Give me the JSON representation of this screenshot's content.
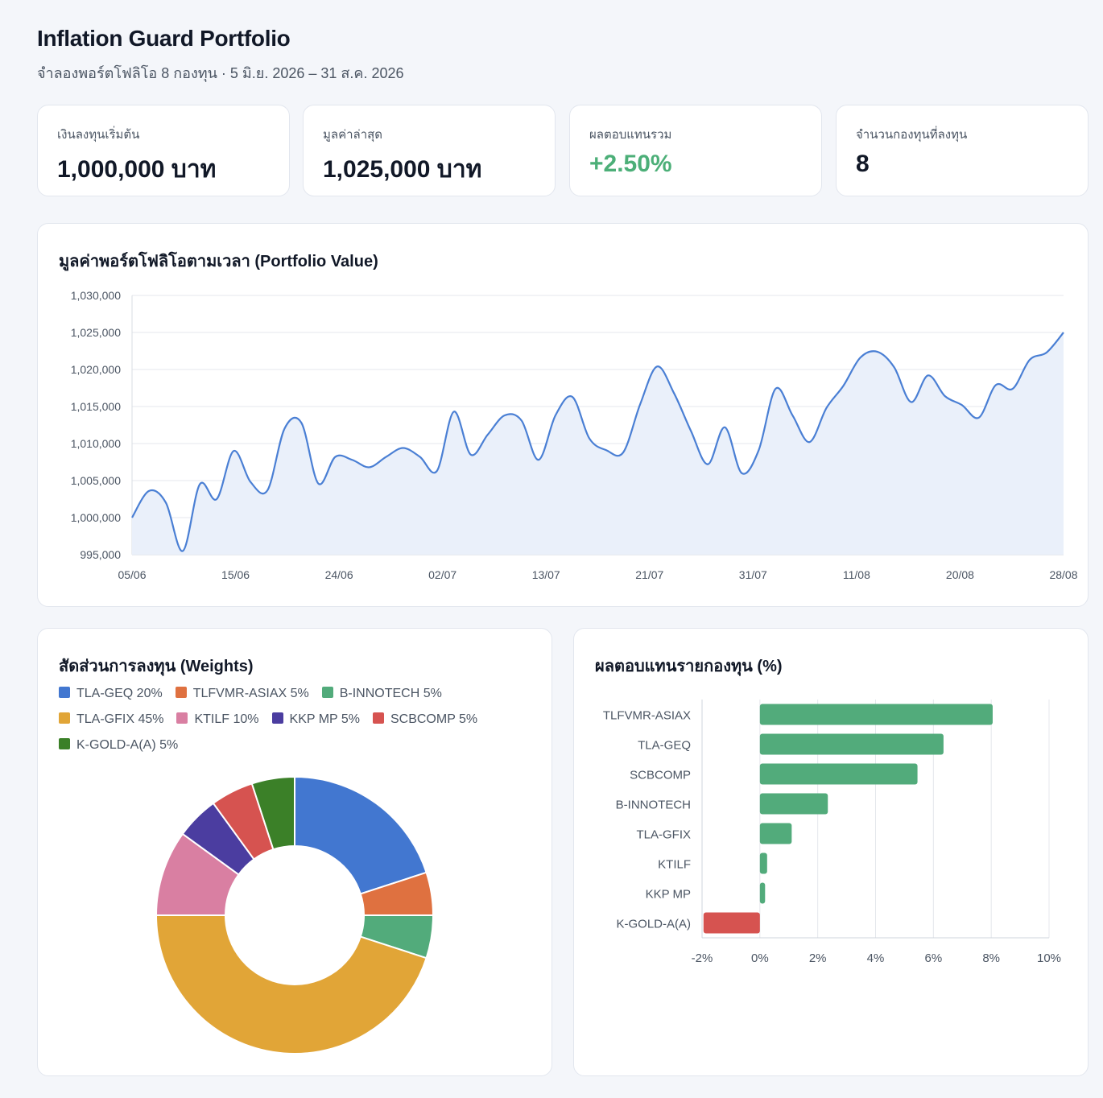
{
  "header": {
    "title": "Inflation Guard Portfolio",
    "subtitle": "จำลองพอร์ตโฟลิโอ 8 กองทุน  ·  5 มิ.ย. 2026 – 31 ส.ค. 2026"
  },
  "kpis": [
    {
      "label": "เงินลงทุนเริ่มต้น",
      "value": "1,000,000 บาท"
    },
    {
      "label": "มูลค่าล่าสุด",
      "value": "1,025,000 บาท"
    },
    {
      "label": "ผลตอบแทนรวม",
      "value": "+2.50%"
    },
    {
      "label": "จำนวนกองทุนที่ลงทุน",
      "value": "8"
    }
  ],
  "colors": {
    "line": "#4a7fd4",
    "area": "#eaf0fa",
    "positive": "#52ab7b",
    "negative": "#d65350",
    "accent_text": "#4caf78"
  },
  "chart_data": [
    {
      "type": "area",
      "title": "มูลค่าพอร์ตโฟลิโอตามเวลา (Portfolio Value)",
      "ylim": [
        995000,
        1030000
      ],
      "yticks": [
        995000,
        1000000,
        1005000,
        1010000,
        1015000,
        1020000,
        1025000,
        1030000
      ],
      "ytick_labels": [
        "995,000",
        "1,000,000",
        "1,005,000",
        "1,010,000",
        "1,015,000",
        "1,020,000",
        "1,025,000",
        "1,030,000"
      ],
      "xtick_labels": [
        "05/06",
        "15/06",
        "24/06",
        "02/07",
        "13/07",
        "21/07",
        "31/07",
        "11/08",
        "20/08",
        "28/08"
      ],
      "grid": true,
      "values": [
        1000000,
        1003600,
        1002000,
        995500,
        1004500,
        1002500,
        1009000,
        1004800,
        1003700,
        1012000,
        1012800,
        1004600,
        1008200,
        1007800,
        1006800,
        1008200,
        1009400,
        1008200,
        1006300,
        1014300,
        1008500,
        1011200,
        1013800,
        1013100,
        1007800,
        1013800,
        1016300,
        1010700,
        1009100,
        1008800,
        1015300,
        1020400,
        1016800,
        1011700,
        1007200,
        1012200,
        1006000,
        1009100,
        1017400,
        1013800,
        1010200,
        1014800,
        1017800,
        1021600,
        1022400,
        1020300,
        1015600,
        1019200,
        1016400,
        1015200,
        1013500,
        1017900,
        1017400,
        1021300,
        1022300,
        1025000
      ]
    },
    {
      "type": "pie",
      "title": "สัดส่วนการลงทุน (Weights)",
      "legend": "top",
      "slices": [
        {
          "name": "TLA-GEQ",
          "value": 20,
          "color": "#4277d0",
          "label": "TLA-GEQ 20%"
        },
        {
          "name": "TLFVMR-ASIAX",
          "value": 5,
          "color": "#df7140",
          "label": "TLFVMR-ASIAX 5%"
        },
        {
          "name": "B-INNOTECH",
          "value": 5,
          "color": "#52ab7b",
          "label": "B-INNOTECH 5%"
        },
        {
          "name": "TLA-GFIX",
          "value": 45,
          "color": "#e1a537",
          "label": "TLA-GFIX 45%"
        },
        {
          "name": "KTILF",
          "value": 10,
          "color": "#d97fa2",
          "label": "KTILF 10%"
        },
        {
          "name": "KKP MP",
          "value": 5,
          "color": "#4b3da0",
          "label": "KKP MP 5%"
        },
        {
          "name": "SCBCOMP",
          "value": 5,
          "color": "#d65350",
          "label": "SCBCOMP 5%"
        },
        {
          "name": "K-GOLD-A(A)",
          "value": 5,
          "color": "#3b8028",
          "label": "K-GOLD-A(A) 5%"
        }
      ]
    },
    {
      "type": "bar",
      "orientation": "horizontal",
      "title": "ผลตอบแทนรายกองทุน (%)",
      "xlim": [
        -2,
        10
      ],
      "xticks": [
        -2,
        0,
        2,
        4,
        6,
        8,
        10
      ],
      "xtick_labels": [
        "-2%",
        "0%",
        "2%",
        "4%",
        "6%",
        "8%",
        "10%"
      ],
      "grid": true,
      "categories": [
        "TLFVMR-ASIAX",
        "TLA-GEQ",
        "SCBCOMP",
        "B-INNOTECH",
        "TLA-GFIX",
        "KTILF",
        "KKP MP",
        "K-GOLD-A(A)"
      ],
      "values": [
        8.05,
        6.35,
        5.45,
        2.35,
        1.1,
        0.25,
        0.18,
        -1.95
      ]
    }
  ]
}
